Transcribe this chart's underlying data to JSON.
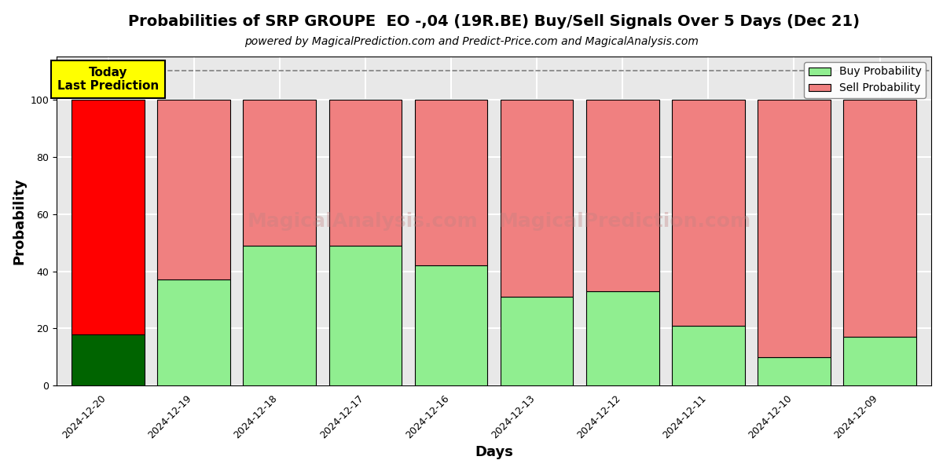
{
  "title": "Probabilities of SRP GROUPE  EO -,04 (19R.BE) Buy/Sell Signals Over 5 Days (Dec 21)",
  "subtitle": "powered by MagicalPrediction.com and Predict-Price.com and MagicalAnalysis.com",
  "xlabel": "Days",
  "ylabel": "Probability",
  "categories": [
    "2024-12-20",
    "2024-12-19",
    "2024-12-18",
    "2024-12-17",
    "2024-12-16",
    "2024-12-13",
    "2024-12-12",
    "2024-12-11",
    "2024-12-10",
    "2024-12-09"
  ],
  "buy_values": [
    18,
    37,
    49,
    49,
    42,
    31,
    33,
    21,
    10,
    17
  ],
  "sell_values": [
    82,
    63,
    51,
    51,
    58,
    69,
    67,
    79,
    90,
    83
  ],
  "buy_colors": [
    "#006400",
    "#90EE90",
    "#90EE90",
    "#90EE90",
    "#90EE90",
    "#90EE90",
    "#90EE90",
    "#90EE90",
    "#90EE90",
    "#90EE90"
  ],
  "sell_colors": [
    "#FF0000",
    "#F08080",
    "#F08080",
    "#F08080",
    "#F08080",
    "#F08080",
    "#F08080",
    "#F08080",
    "#F08080",
    "#F08080"
  ],
  "today_box_color": "#FFFF00",
  "today_label": "Today\nLast Prediction",
  "ylim": [
    0,
    115
  ],
  "yticks": [
    0,
    20,
    40,
    60,
    80,
    100
  ],
  "legend_buy_color": "#90EE90",
  "legend_sell_color": "#F08080",
  "bar_width": 0.85,
  "title_fontsize": 14,
  "subtitle_fontsize": 10,
  "axis_label_fontsize": 13,
  "tick_fontsize": 9,
  "grid_color": "#ffffff",
  "bg_color": "#e8e8e8"
}
